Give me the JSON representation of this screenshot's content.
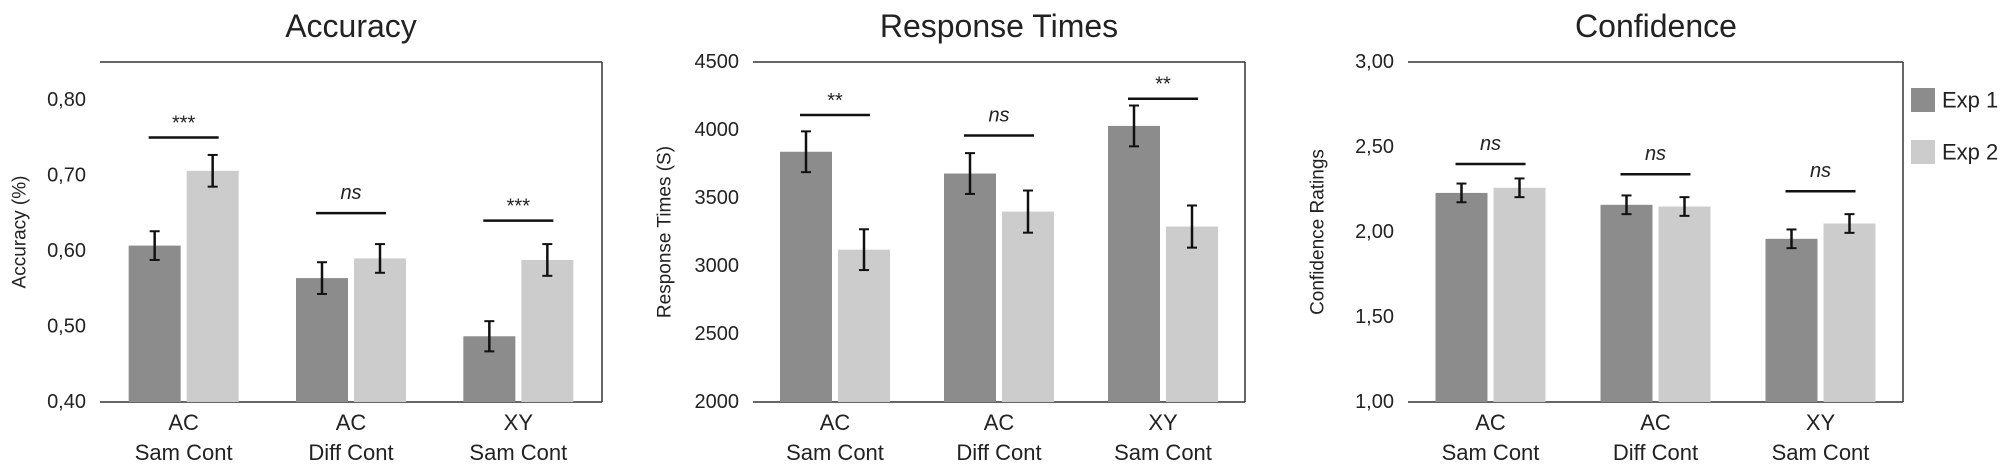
{
  "chart_data": [
    {
      "type": "bar",
      "title": "Accuracy",
      "xlabel": "",
      "ylabel": "Accuracy (%)",
      "ylim": [
        0.4,
        0.85
      ],
      "yticks": [
        "0,40",
        "0,50",
        "0,60",
        "0,70",
        "0,80"
      ],
      "ytick_values": [
        0.4,
        0.5,
        0.6,
        0.7,
        0.8
      ],
      "categories": [
        [
          "AC",
          "Sam Cont"
        ],
        [
          "AC",
          "Diff Cont"
        ],
        [
          "XY",
          "Sam Cont"
        ]
      ],
      "series": [
        {
          "name": "Exp 1",
          "values": [
            0.607,
            0.564,
            0.487
          ],
          "errors": [
            0.019,
            0.021,
            0.02
          ]
        },
        {
          "name": "Exp 2",
          "values": [
            0.706,
            0.59,
            0.588
          ],
          "errors": [
            0.021,
            0.019,
            0.021
          ]
        }
      ],
      "significance": [
        "***",
        "ns",
        "***"
      ],
      "sig_levels": [
        0.75,
        0.65,
        0.64
      ]
    },
    {
      "type": "bar",
      "title": "Response Times",
      "xlabel": "",
      "ylabel": "Response Times (S)",
      "ylim": [
        2000,
        4500
      ],
      "yticks": [
        "2000",
        "2500",
        "3000",
        "3500",
        "4000",
        "4500"
      ],
      "ytick_values": [
        2000,
        2500,
        3000,
        3500,
        4000,
        4500
      ],
      "categories": [
        [
          "AC",
          "Sam Cont"
        ],
        [
          "AC",
          "Diff Cont"
        ],
        [
          "XY",
          "Sam Cont"
        ]
      ],
      "series": [
        {
          "name": "Exp 1",
          "values": [
            3840,
            3680,
            4030
          ],
          "errors": [
            150,
            150,
            150
          ]
        },
        {
          "name": "Exp 2",
          "values": [
            3120,
            3400,
            3290
          ],
          "errors": [
            150,
            155,
            155
          ]
        }
      ],
      "significance": [
        "**",
        "ns",
        "**"
      ],
      "sig_levels": [
        4110,
        3960,
        4230
      ]
    },
    {
      "type": "bar",
      "title": "Confidence",
      "xlabel": "",
      "ylabel": "Confidence Ratings",
      "ylim": [
        1.0,
        3.0
      ],
      "yticks": [
        "1,00",
        "1,50",
        "2,00",
        "2,50",
        "3,00"
      ],
      "ytick_values": [
        1.0,
        1.5,
        2.0,
        2.5,
        3.0
      ],
      "categories": [
        [
          "AC",
          "Sam Cont"
        ],
        [
          "AC",
          "Diff Cont"
        ],
        [
          "XY",
          "Sam Cont"
        ]
      ],
      "series": [
        {
          "name": "Exp 1",
          "values": [
            2.23,
            2.16,
            1.96
          ],
          "errors": [
            0.055,
            0.055,
            0.055
          ]
        },
        {
          "name": "Exp 2",
          "values": [
            2.26,
            2.15,
            2.05
          ],
          "errors": [
            0.055,
            0.055,
            0.055
          ]
        }
      ],
      "significance": [
        "ns",
        "ns",
        "ns"
      ],
      "sig_levels": [
        2.4,
        2.34,
        2.24
      ]
    }
  ],
  "legend": {
    "placement": "right",
    "entries": [
      {
        "name": "Exp 1",
        "color": "#8c8c8c"
      },
      {
        "name": "Exp 2",
        "color": "#cccccc"
      }
    ]
  },
  "colors": {
    "exp1": "#8c8c8c",
    "exp2": "#cccccc",
    "axis": "#333333",
    "error_bar": "#111111"
  }
}
